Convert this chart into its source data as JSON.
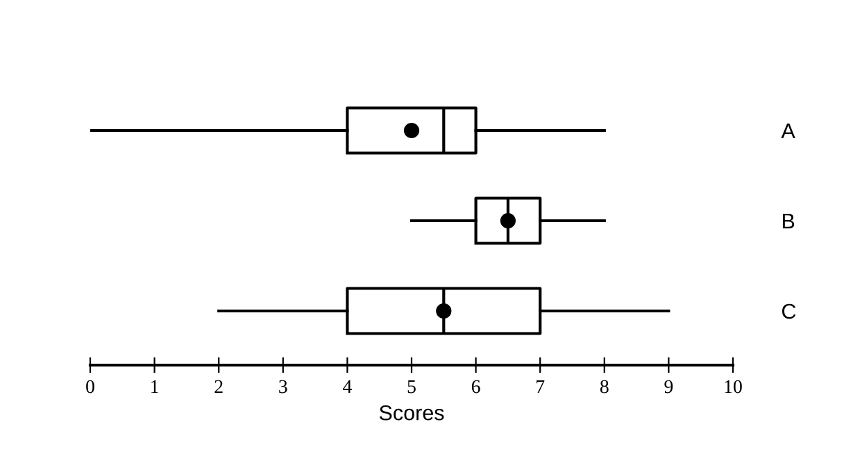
{
  "chart_data": {
    "type": "box",
    "orientation": "horizontal",
    "xlabel": "Scores",
    "categories": [
      "A",
      "B",
      "C"
    ],
    "boxes": [
      {
        "low": 0,
        "q1": 4,
        "median": 5.5,
        "q3": 6,
        "high": 8,
        "mean": 5
      },
      {
        "low": 5,
        "q1": 6,
        "median": 6.5,
        "q3": 7,
        "high": 8,
        "mean": 6.5
      },
      {
        "low": 2,
        "q1": 4,
        "median": 5.5,
        "q3": 7,
        "high": 9,
        "mean": 5.5
      }
    ],
    "xlim": [
      0,
      10
    ],
    "xticks": [
      0,
      1,
      2,
      3,
      4,
      5,
      6,
      7,
      8,
      9,
      10
    ]
  }
}
